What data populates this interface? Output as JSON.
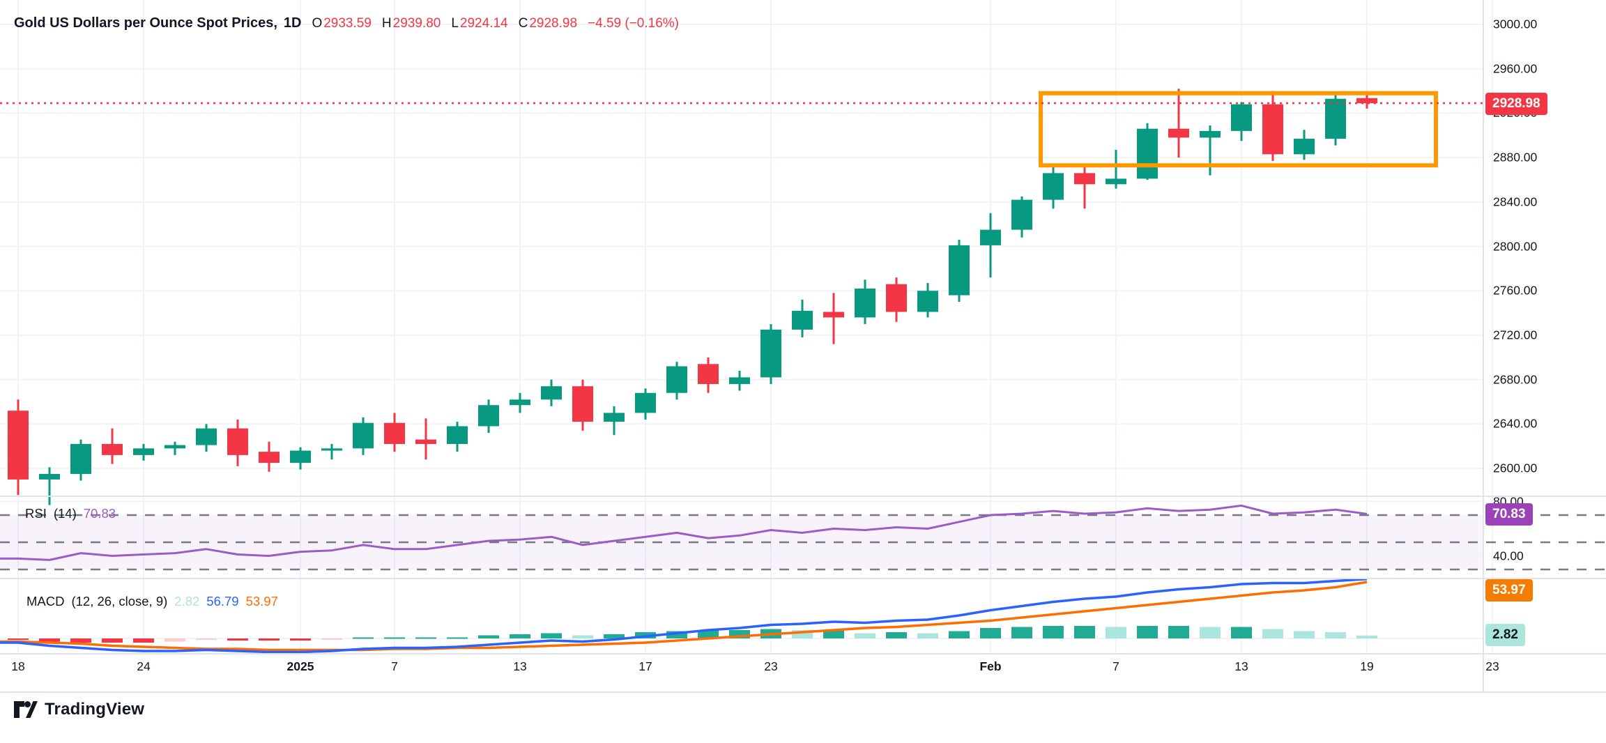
{
  "header": {
    "symbol_title": "Gold US Dollars per Ounce Spot Prices,",
    "interval": "1D",
    "o_label": "O",
    "o": "2933.59",
    "h_label": "H",
    "h": "2939.80",
    "l_label": "L",
    "l": "2924.14",
    "c_label": "C",
    "c": "2928.98",
    "change": "−4.59 (−0.16%)"
  },
  "price_axis": {
    "labels": [
      {
        "value": 3000,
        "text": "3000.00"
      },
      {
        "value": 2960,
        "text": "2960.00"
      },
      {
        "value": 2920,
        "text": "2920.00"
      },
      {
        "value": 2880,
        "text": "2880.00"
      },
      {
        "value": 2840,
        "text": "2840.00"
      },
      {
        "value": 2800,
        "text": "2800.00"
      },
      {
        "value": 2760,
        "text": "2760.00"
      },
      {
        "value": 2720,
        "text": "2720.00"
      },
      {
        "value": 2680,
        "text": "2680.00"
      },
      {
        "value": 2640,
        "text": "2640.00"
      },
      {
        "value": 2600,
        "text": "2600.00"
      }
    ],
    "last_price_badge": "2928.98"
  },
  "time_axis": {
    "labels": [
      {
        "text": "18",
        "index": 0,
        "bold": false
      },
      {
        "text": "24",
        "index": 4,
        "bold": false
      },
      {
        "text": "2025",
        "index": 9,
        "bold": true
      },
      {
        "text": "7",
        "index": 12,
        "bold": false
      },
      {
        "text": "13",
        "index": 16,
        "bold": false
      },
      {
        "text": "17",
        "index": 20,
        "bold": false
      },
      {
        "text": "23",
        "index": 24,
        "bold": false
      },
      {
        "text": "Feb",
        "index": 31,
        "bold": true
      },
      {
        "text": "7",
        "index": 35,
        "bold": false
      },
      {
        "text": "13",
        "index": 39,
        "bold": false
      },
      {
        "text": "19",
        "index": 43,
        "bold": false
      },
      {
        "text": "23",
        "index": 47,
        "bold": false
      }
    ]
  },
  "rsi_pane": {
    "label": "RSI",
    "params": "(14)",
    "value": "70.83",
    "axis_labels": [
      {
        "value": 80,
        "text": "80.00"
      },
      {
        "value": 40,
        "text": "40.00"
      }
    ],
    "levels": [
      70,
      50,
      30
    ]
  },
  "macd_pane": {
    "label": "MACD",
    "params": "(12, 26, close, 9)",
    "hist_value": "2.82",
    "macd_value": "56.79",
    "signal_value": "53.97"
  },
  "footer": {
    "logo_text": "TradingView"
  },
  "colors": {
    "up": "#089981",
    "down": "#F23645",
    "hist_up": "#22AB94",
    "hist_up_weak": "#ACE5DC",
    "hist_down": "#F23645",
    "hist_down_weak": "#FCCBCD",
    "macd_line": "#2962FF",
    "signal_line": "#FF6D00",
    "rsi_line": "#9C5BC7",
    "rsi_badge": "#9C42B8",
    "signal_badge": "#F57C00",
    "hist_badge_bg": "#ACE5DC",
    "price_badge": "#F23645",
    "box": "#FF9800",
    "grid": "#F0F3FA",
    "separator": "#E0E3EB",
    "dash": "#787B86",
    "text": "#131722",
    "rsi_band_fill": "rgba(156,91,199,0.07)"
  },
  "chart_data": {
    "type": "candlestick",
    "title": "Gold US Dollars per Ounce Spot Prices",
    "interval": "1D",
    "ylim": [
      2560,
      3010
    ],
    "y_ticks": [
      2600,
      2640,
      2680,
      2720,
      2760,
      2800,
      2840,
      2880,
      2920,
      2960,
      3000
    ],
    "x": [
      "Dec 18",
      "Dec 19",
      "Dec 20",
      "Dec 23",
      "Dec 24",
      "Dec 26",
      "Dec 27",
      "Dec 30",
      "Dec 31",
      "Jan 2",
      "Jan 3",
      "Jan 6",
      "Jan 7",
      "Jan 8",
      "Jan 9",
      "Jan 10",
      "Jan 13",
      "Jan 14",
      "Jan 15",
      "Jan 16",
      "Jan 17",
      "Jan 20",
      "Jan 21",
      "Jan 22",
      "Jan 23",
      "Jan 24",
      "Jan 27",
      "Jan 28",
      "Jan 29",
      "Jan 30",
      "Jan 31",
      "Feb 3",
      "Feb 4",
      "Feb 5",
      "Feb 6",
      "Feb 7",
      "Feb 10",
      "Feb 11",
      "Feb 12",
      "Feb 13",
      "Feb 14",
      "Feb 17",
      "Feb 18",
      "Feb 19"
    ],
    "ohlc": [
      [
        2652,
        2662,
        2576,
        2590
      ],
      [
        2590,
        2601,
        2567,
        2595
      ],
      [
        2595,
        2626,
        2589,
        2622
      ],
      [
        2622,
        2636,
        2604,
        2612
      ],
      [
        2612,
        2622,
        2607,
        2618
      ],
      [
        2618,
        2624,
        2612,
        2621
      ],
      [
        2621,
        2640,
        2615,
        2636
      ],
      [
        2636,
        2644,
        2602,
        2612
      ],
      [
        2615,
        2624,
        2597,
        2605
      ],
      [
        2605,
        2619,
        2599,
        2616
      ],
      [
        2616,
        2622,
        2608,
        2618
      ],
      [
        2618,
        2646,
        2612,
        2641
      ],
      [
        2641,
        2650,
        2615,
        2622
      ],
      [
        2626,
        2645,
        2608,
        2622
      ],
      [
        2622,
        2642,
        2615,
        2638
      ],
      [
        2638,
        2662,
        2632,
        2657
      ],
      [
        2657,
        2668,
        2650,
        2662
      ],
      [
        2662,
        2680,
        2656,
        2674
      ],
      [
        2674,
        2680,
        2634,
        2642
      ],
      [
        2642,
        2656,
        2630,
        2650
      ],
      [
        2650,
        2672,
        2644,
        2668
      ],
      [
        2668,
        2696,
        2662,
        2692
      ],
      [
        2694,
        2700,
        2668,
        2676
      ],
      [
        2676,
        2688,
        2670,
        2682
      ],
      [
        2682,
        2730,
        2676,
        2725
      ],
      [
        2725,
        2752,
        2718,
        2742
      ],
      [
        2741,
        2758,
        2712,
        2736
      ],
      [
        2736,
        2770,
        2730,
        2762
      ],
      [
        2766,
        2772,
        2732,
        2741
      ],
      [
        2741,
        2767,
        2736,
        2760
      ],
      [
        2756,
        2806,
        2750,
        2801
      ],
      [
        2801,
        2830,
        2772,
        2815
      ],
      [
        2815,
        2845,
        2808,
        2842
      ],
      [
        2842,
        2872,
        2834,
        2866
      ],
      [
        2866,
        2873,
        2834,
        2856
      ],
      [
        2856,
        2887,
        2852,
        2861
      ],
      [
        2861,
        2911,
        2860,
        2906
      ],
      [
        2906,
        2942,
        2880,
        2898
      ],
      [
        2898,
        2909,
        2864,
        2904
      ],
      [
        2904,
        2930,
        2895,
        2928
      ],
      [
        2928,
        2940,
        2877,
        2883
      ],
      [
        2883,
        2905,
        2878,
        2897
      ],
      [
        2897,
        2937,
        2891,
        2933
      ],
      [
        2933.59,
        2939.8,
        2924.14,
        2928.98
      ]
    ],
    "overlays": {
      "last_price_line": 2928.98,
      "highlight_box": {
        "price_top": 2938,
        "price_bottom": 2873,
        "x_start_index": 32.6,
        "x_end_index": 45.2
      }
    },
    "indicators": {
      "rsi": {
        "period": 14,
        "last": 70.83,
        "values": [
          38,
          37,
          42,
          40,
          41,
          42,
          45,
          41,
          40,
          43,
          44,
          48,
          45,
          45,
          48,
          51,
          52,
          54,
          48,
          51,
          54,
          57,
          53,
          55,
          59,
          57,
          60,
          59,
          61,
          60,
          65,
          70,
          71,
          73,
          71,
          72,
          75,
          73,
          74,
          77,
          71,
          72,
          74,
          70.83
        ]
      },
      "macd": {
        "params": [
          12,
          26,
          9
        ],
        "last_macd": 56.79,
        "last_signal": 53.97,
        "last_hist": 2.82,
        "macd_values": [
          -4,
          -7,
          -9,
          -11,
          -12,
          -12,
          -11,
          -12,
          -13,
          -13,
          -12,
          -10,
          -9,
          -9,
          -8,
          -6,
          -4,
          -2,
          -3,
          -1,
          2,
          5,
          8,
          10,
          13,
          14,
          16,
          15,
          17,
          18,
          22,
          27,
          31,
          35,
          38,
          40,
          44,
          47,
          49,
          52,
          53,
          53,
          55,
          56.79
        ],
        "signal_values": [
          -3,
          -4,
          -5,
          -7,
          -8,
          -9,
          -10,
          -10,
          -11,
          -11,
          -11,
          -11,
          -10,
          -10,
          -9,
          -9,
          -8,
          -7,
          -6,
          -5,
          -4,
          -2,
          0,
          2,
          4,
          6,
          8,
          10,
          11,
          13,
          15,
          17,
          20,
          23,
          26,
          29,
          32,
          35,
          38,
          41,
          44,
          46,
          49,
          53.97
        ]
      }
    }
  }
}
